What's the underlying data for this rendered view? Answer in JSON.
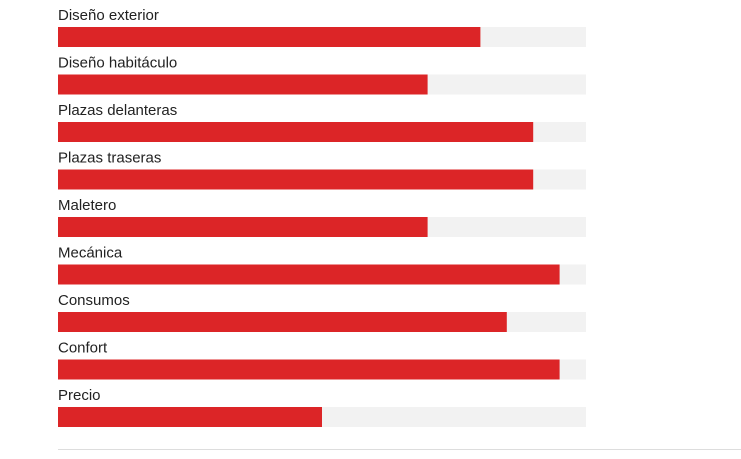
{
  "chart_data": {
    "type": "bar",
    "orientation": "horizontal",
    "categories": [
      "Diseño exterior",
      "Diseño habitáculo",
      "Plazas delanteras",
      "Plazas traseras",
      "Maletero",
      "Mecánica",
      "Consumos",
      "Confort",
      "Precio"
    ],
    "values": [
      8,
      7,
      9,
      9,
      7,
      9.5,
      8.5,
      9.5,
      5
    ],
    "xlim": [
      0,
      10
    ],
    "color": "#dc2527",
    "track_color": "#f2f2f2"
  }
}
